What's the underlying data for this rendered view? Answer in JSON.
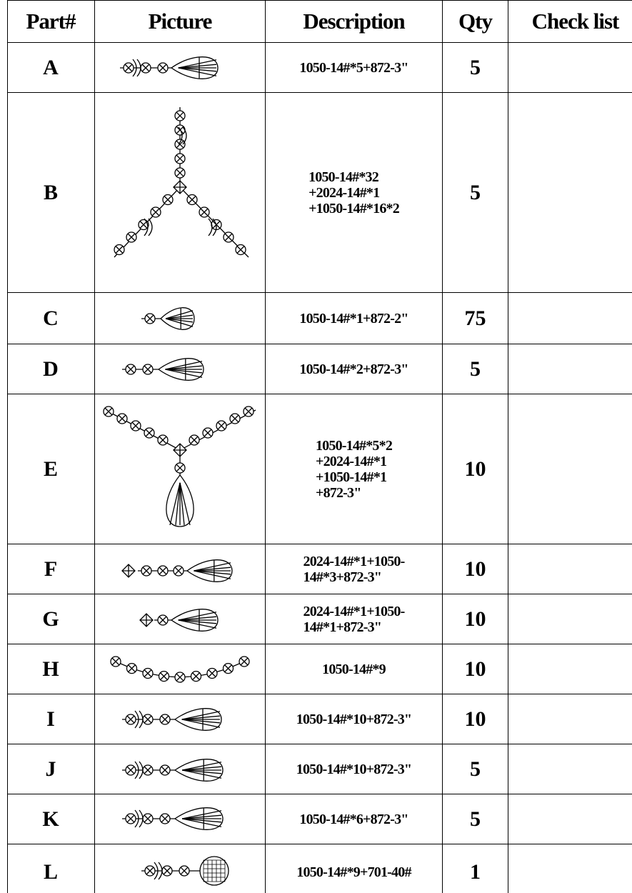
{
  "table": {
    "header": [
      "Part#",
      "Picture",
      "Description",
      "Qty",
      "Check list"
    ],
    "rows": [
      {
        "part": "A",
        "description": [
          "1050-14#*5+872-3\""
        ],
        "qty": 5
      },
      {
        "part": "B",
        "description": [
          "1050-14#*32",
          "+2024-14#*1",
          "+1050-14#*16*2"
        ],
        "qty": 5
      },
      {
        "part": "C",
        "description": [
          "1050-14#*1+872-2\""
        ],
        "qty": 75
      },
      {
        "part": "D",
        "description": [
          "1050-14#*2+872-3\""
        ],
        "qty": 5
      },
      {
        "part": "E",
        "description": [
          "1050-14#*5*2",
          "+2024-14#*1",
          "+1050-14#*1",
          "+872-3\""
        ],
        "qty": 10
      },
      {
        "part": "F",
        "description": [
          "2024-14#*1+1050-",
          "14#*3+872-3\""
        ],
        "qty": 10
      },
      {
        "part": "G",
        "description": [
          "2024-14#*1+1050-",
          "14#*1+872-3\""
        ],
        "qty": 10
      },
      {
        "part": "H",
        "description": [
          "1050-14#*9"
        ],
        "qty": 10
      },
      {
        "part": "I",
        "description": [
          "1050-14#*10+872-3\""
        ],
        "qty": 10
      },
      {
        "part": "J",
        "description": [
          "1050-14#*10+872-3\""
        ],
        "qty": 5
      },
      {
        "part": "K",
        "description": [
          "1050-14#*6+872-3\""
        ],
        "qty": 5
      },
      {
        "part": "L",
        "description": [
          "1050-14#*9+701-40#"
        ],
        "qty": 1
      }
    ]
  }
}
